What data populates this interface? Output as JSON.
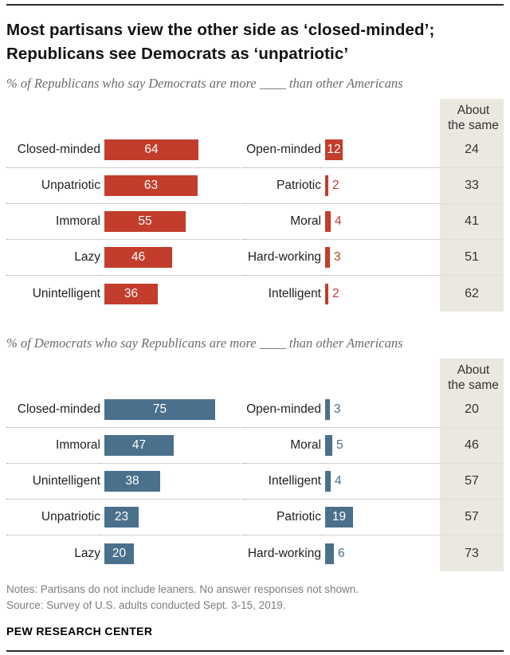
{
  "page": {
    "title_lines": [
      "Most partisans view the other side as ‘closed-minded’;",
      "Republicans see Democrats as ‘unpatriotic’"
    ],
    "notes": "Notes: Partisans do not include leaners. No answer responses not shown.",
    "source": "Source: Survey of U.S. adults conducted Sept. 3-15, 2019.",
    "branding": "PEW RESEARCH CENTER"
  },
  "colors": {
    "republican_red": "#c23d2b",
    "democrat_blue": "#4a708c",
    "same_column_bg": "#ebe8e0"
  },
  "chart_data": [
    {
      "type": "bar",
      "group": "republicans",
      "subtitle": "% of Republicans who say Democrats are more ____ than other Americans",
      "bar_color": "#c23d2b",
      "same_column_header": "About the same",
      "axis": {
        "xlim": [
          0,
          100
        ],
        "value_unit": "percent",
        "grid": false
      },
      "rows": [
        {
          "negative_trait": "Closed-minded",
          "negative_value": 64,
          "positive_trait": "Open-minded",
          "positive_value": 12,
          "about_the_same": 24
        },
        {
          "negative_trait": "Unpatriotic",
          "negative_value": 63,
          "positive_trait": "Patriotic",
          "positive_value": 2,
          "about_the_same": 33
        },
        {
          "negative_trait": "Immoral",
          "negative_value": 55,
          "positive_trait": "Moral",
          "positive_value": 4,
          "about_the_same": 41
        },
        {
          "negative_trait": "Lazy",
          "negative_value": 46,
          "positive_trait": "Hard-working",
          "positive_value": 3,
          "about_the_same": 51
        },
        {
          "negative_trait": "Unintelligent",
          "negative_value": 36,
          "positive_trait": "Intelligent",
          "positive_value": 2,
          "about_the_same": 62
        }
      ]
    },
    {
      "type": "bar",
      "group": "democrats",
      "subtitle": "% of Democrats who say Republicans are more ____ than other Americans",
      "bar_color": "#4a708c",
      "same_column_header": "About the same",
      "axis": {
        "xlim": [
          0,
          100
        ],
        "value_unit": "percent",
        "grid": false
      },
      "rows": [
        {
          "negative_trait": "Closed-minded",
          "negative_value": 75,
          "positive_trait": "Open-minded",
          "positive_value": 3,
          "about_the_same": 20
        },
        {
          "negative_trait": "Immoral",
          "negative_value": 47,
          "positive_trait": "Moral",
          "positive_value": 5,
          "about_the_same": 46
        },
        {
          "negative_trait": "Unintelligent",
          "negative_value": 38,
          "positive_trait": "Intelligent",
          "positive_value": 4,
          "about_the_same": 57
        },
        {
          "negative_trait": "Unpatriotic",
          "negative_value": 23,
          "positive_trait": "Patriotic",
          "positive_value": 19,
          "about_the_same": 57
        },
        {
          "negative_trait": "Lazy",
          "negative_value": 20,
          "positive_trait": "Hard-working",
          "positive_value": 6,
          "about_the_same": 73
        }
      ]
    }
  ]
}
